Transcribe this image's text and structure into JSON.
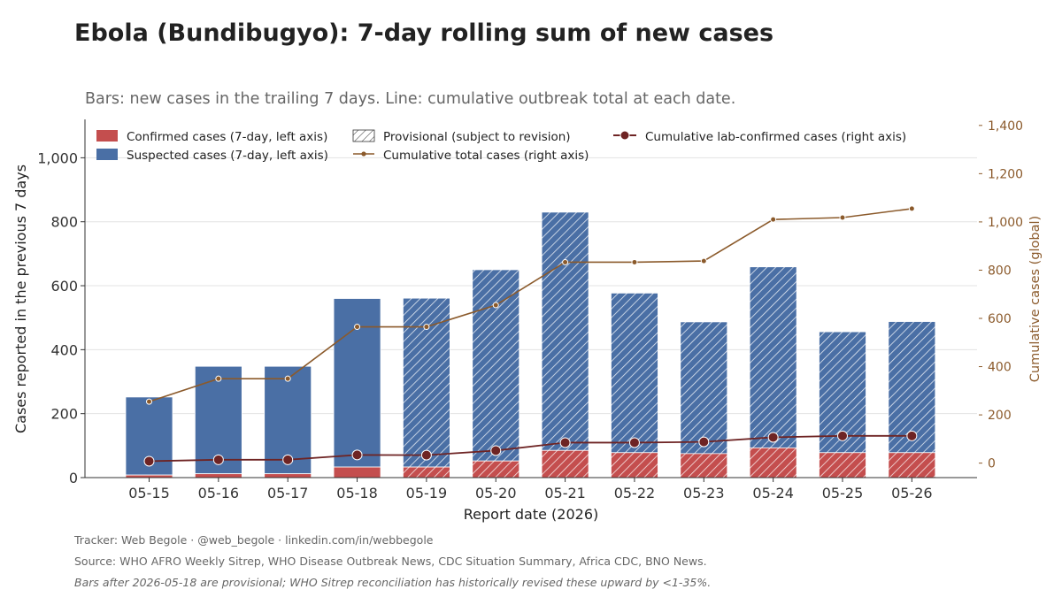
{
  "title": "Ebola (Bundibugyo): 7-day rolling sum of new cases",
  "subtitle": "Bars: new cases in the trailing 7 days. Line: cumulative outbreak total at each date.",
  "footer": {
    "tracker": "Tracker: Web Begole · @web_begole · linkedin.com/in/webbegole",
    "source": "Source: WHO AFRO Weekly Sitrep, WHO Disease Outbreak News, CDC Situation Summary, Africa CDC, BNO News.",
    "note": "Bars after 2026-05-18 are provisional; WHO Sitrep reconciliation has historically revised these upward by <1-35%."
  },
  "colors": {
    "confirmed": "#c44e4e",
    "suspected": "#4a6fa5",
    "total_line": "#8b5a2b",
    "confirmed_line": "#6e2424",
    "right_axis": "#8b5a2b",
    "grid": "#e3e3e3"
  },
  "chart_data": {
    "type": "bar",
    "xlabel": "Report date (2026)",
    "ylabel": "Cases reported in the previous 7 days",
    "y2label": "Cumulative cases (global)",
    "ylim": [
      0,
      1120
    ],
    "y2lim": [
      -60,
      1425
    ],
    "yticks": [
      0,
      200,
      400,
      600,
      800,
      1000
    ],
    "y2ticks": [
      0,
      200,
      400,
      600,
      800,
      1000,
      1200,
      1400
    ],
    "y2ticklabels": [
      "0",
      "200",
      "400",
      "600",
      "800",
      "1,000",
      "1,200",
      "1,400"
    ],
    "yticklabels": [
      "0",
      "200",
      "400",
      "600",
      "800",
      "1,000"
    ],
    "categories": [
      "05-15",
      "05-16",
      "05-17",
      "05-18",
      "05-19",
      "05-20",
      "05-21",
      "05-22",
      "05-23",
      "05-24",
      "05-25",
      "05-26"
    ],
    "provisional": [
      false,
      false,
      false,
      false,
      true,
      true,
      true,
      true,
      true,
      true,
      true,
      true
    ],
    "stacked": true,
    "series": [
      {
        "name": "Confirmed cases (7-day, left axis)",
        "axis": "left",
        "kind": "bar",
        "values": [
          8,
          12,
          12,
          33,
          33,
          52,
          85,
          78,
          75,
          93,
          78,
          78
        ]
      },
      {
        "name": "Suspected cases (7-day, left axis)",
        "axis": "left",
        "kind": "bar",
        "values": [
          244,
          336,
          336,
          527,
          528,
          598,
          745,
          499,
          412,
          566,
          378,
          410
        ]
      },
      {
        "name": "Cumulative total cases (right axis)",
        "axis": "right",
        "kind": "line",
        "values": [
          255,
          350,
          350,
          565,
          565,
          655,
          833,
          833,
          838,
          1010,
          1018,
          1055
        ]
      },
      {
        "name": "Cumulative lab-confirmed cases (right axis)",
        "axis": "right",
        "kind": "line",
        "values": [
          8,
          14,
          14,
          34,
          33,
          52,
          85,
          85,
          88,
          107,
          113,
          113
        ]
      }
    ],
    "legend": {
      "placement": "top",
      "provisional_label": "Provisional (subject to revision)"
    },
    "grid": true
  }
}
